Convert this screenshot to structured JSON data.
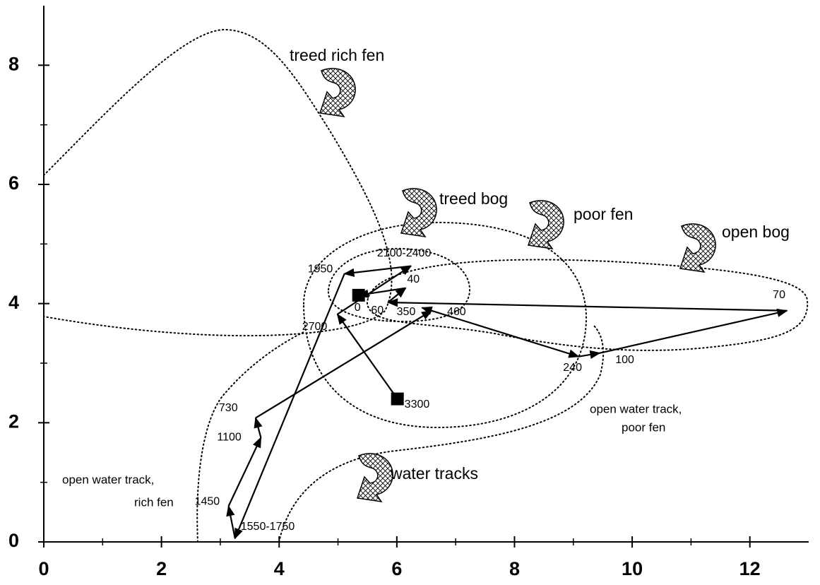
{
  "chart_data": {
    "type": "line",
    "xlim": [
      0,
      13
    ],
    "ylim": [
      0,
      9
    ],
    "xticks": [
      0,
      2,
      4,
      6,
      8,
      10,
      12
    ],
    "yticks": [
      0,
      2,
      4,
      6,
      8
    ],
    "series": [
      {
        "color": "#000000",
        "x": [
          6.01,
          4.99,
          6.24,
          5.11,
          3.25,
          3.14,
          3.69,
          3.6,
          6.59,
          6.43,
          9.09,
          9.45,
          12.63,
          5.85,
          6.15,
          5.35
        ],
        "values": [
          2.4,
          3.82,
          4.63,
          4.5,
          0.06,
          0.6,
          1.75,
          2.08,
          3.88,
          3.93,
          3.11,
          3.17,
          3.88,
          4.02,
          4.26,
          4.14
        ],
        "labels": [
          "3300",
          "2700",
          "2100-2400",
          "1950",
          "1550-1750",
          "1450",
          "1100",
          "730",
          "460",
          "350",
          "240",
          "100",
          "70",
          "60",
          "40",
          "0"
        ]
      }
    ],
    "annotations": [
      "treed rich fen",
      "treed bog",
      "poor fen",
      "open bog",
      "water tracks",
      "open water track,",
      "rich fen",
      "open water track,",
      "poor fen"
    ]
  }
}
